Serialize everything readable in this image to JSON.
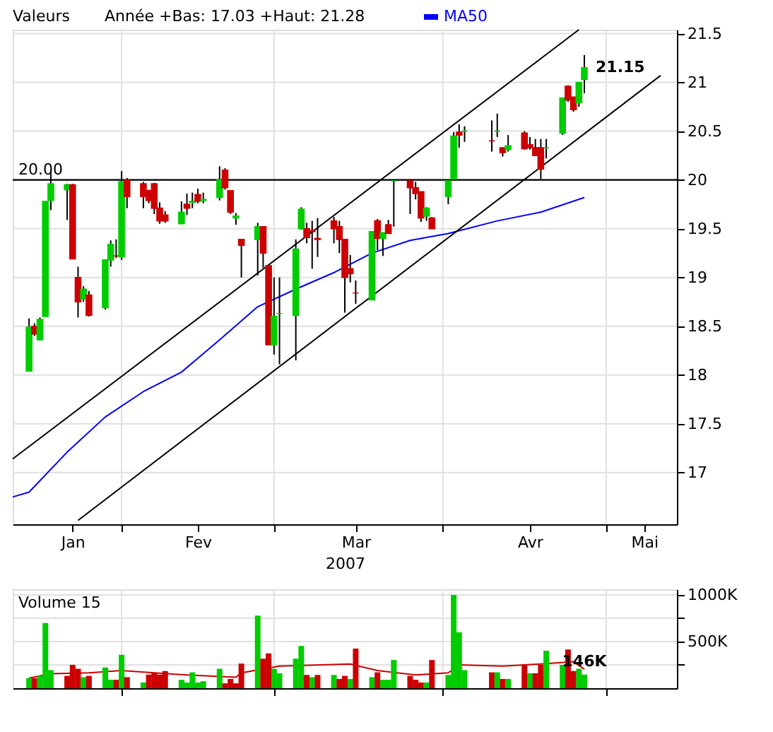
{
  "chart_data": [
    {
      "type": "candlestick",
      "legend_title": "Valeurs",
      "annotations": [
        "Année +Bas: 17.03 +Haut: 21.28"
      ],
      "xlabel": "2007",
      "legend": "top",
      "grid": true,
      "x": [
        "2007-01-15",
        "2007-01-16",
        "2007-01-17",
        "2007-01-18",
        "2007-01-19",
        "2007-01-22",
        "2007-01-23",
        "2007-01-24",
        "2007-01-25",
        "2007-01-26",
        "2007-01-29",
        "2007-01-30",
        "2007-01-31",
        "2007-02-01",
        "2007-02-02",
        "2007-02-05",
        "2007-02-06",
        "2007-02-07",
        "2007-02-08",
        "2007-02-09",
        "2007-02-12",
        "2007-02-13",
        "2007-02-14",
        "2007-02-15",
        "2007-02-16",
        "2007-02-19",
        "2007-02-20",
        "2007-02-21",
        "2007-02-22",
        "2007-02-23",
        "2007-02-26",
        "2007-02-27",
        "2007-02-28",
        "2007-03-01",
        "2007-03-02",
        "2007-03-05",
        "2007-03-06",
        "2007-03-07",
        "2007-03-08",
        "2007-03-09",
        "2007-03-12",
        "2007-03-13",
        "2007-03-14",
        "2007-03-15",
        "2007-03-16",
        "2007-03-19",
        "2007-03-20",
        "2007-03-21",
        "2007-03-22",
        "2007-03-23",
        "2007-03-26",
        "2007-03-27",
        "2007-03-28",
        "2007-03-29",
        "2007-03-30",
        "2007-04-02",
        "2007-04-03",
        "2007-04-04",
        "2007-04-05",
        "2007-04-10",
        "2007-04-11",
        "2007-04-12",
        "2007-04-13",
        "2007-04-16",
        "2007-04-17",
        "2007-04-18",
        "2007-04-19",
        "2007-04-20",
        "2007-04-23",
        "2007-04-24",
        "2007-04-25",
        "2007-04-26",
        "2007-04-27"
      ],
      "ohlc": [
        [
          18.04,
          18.58,
          18.04,
          18.49
        ],
        [
          18.5,
          18.53,
          18.4,
          18.42
        ],
        [
          18.36,
          18.59,
          18.36,
          18.57
        ],
        [
          18.6,
          19.78,
          18.6,
          19.78
        ],
        [
          19.79,
          20.1,
          19.69,
          19.96
        ],
        [
          19.9,
          19.96,
          19.59,
          19.95
        ],
        [
          19.95,
          19.96,
          19.19,
          19.19
        ],
        [
          19.0,
          19.11,
          18.59,
          18.75
        ],
        [
          18.78,
          18.91,
          18.75,
          18.88
        ],
        [
          18.82,
          18.86,
          18.6,
          18.61
        ],
        [
          18.69,
          19.18,
          18.67,
          19.18
        ],
        [
          19.18,
          19.38,
          19.11,
          19.34
        ],
        [
          19.22,
          19.39,
          19.2,
          19.22
        ],
        [
          19.21,
          20.09,
          19.18,
          19.98
        ],
        [
          20.0,
          20.02,
          19.71,
          19.83
        ],
        [
          19.96,
          19.98,
          19.71,
          19.83
        ],
        [
          19.89,
          19.9,
          19.76,
          19.79
        ],
        [
          19.96,
          19.97,
          19.65,
          19.71
        ],
        [
          19.71,
          19.77,
          19.55,
          19.58
        ],
        [
          19.64,
          19.68,
          19.56,
          19.58
        ],
        [
          19.55,
          19.78,
          19.55,
          19.67
        ],
        [
          19.75,
          19.86,
          19.64,
          19.71
        ],
        [
          19.77,
          19.87,
          19.71,
          19.78
        ],
        [
          19.85,
          19.91,
          19.76,
          19.78
        ],
        [
          19.79,
          19.87,
          19.76,
          19.8
        ],
        [
          19.82,
          20.14,
          19.79,
          20.0
        ],
        [
          20.1,
          20.12,
          19.9,
          19.92
        ],
        [
          19.89,
          19.89,
          19.65,
          19.67
        ],
        [
          19.61,
          19.66,
          19.54,
          19.63
        ],
        [
          19.39,
          19.39,
          19.0,
          19.33
        ],
        [
          19.39,
          19.56,
          19.02,
          19.52
        ],
        [
          19.52,
          19.52,
          19.1,
          19.25
        ],
        [
          19.12,
          19.12,
          18.31,
          18.31
        ],
        [
          18.31,
          19.0,
          18.21,
          18.6
        ],
        [
          18.63,
          19.0,
          18.11,
          18.63
        ],
        [
          18.61,
          19.39,
          18.15,
          19.29
        ],
        [
          19.5,
          19.72,
          19.49,
          19.7
        ],
        [
          19.5,
          19.56,
          19.35,
          19.41
        ],
        [
          19.48,
          19.58,
          19.09,
          19.47
        ],
        [
          19.4,
          19.61,
          19.21,
          19.39
        ],
        [
          19.58,
          19.62,
          19.35,
          19.5
        ],
        [
          19.52,
          19.58,
          19.25,
          19.39
        ],
        [
          19.39,
          19.39,
          18.64,
          19.0
        ],
        [
          19.09,
          19.23,
          18.95,
          19.04
        ],
        [
          18.84,
          18.97,
          18.73,
          18.84
        ],
        [
          18.77,
          19.47,
          18.77,
          19.47
        ],
        [
          19.58,
          19.6,
          19.28,
          19.4
        ],
        [
          19.4,
          19.46,
          19.22,
          19.46
        ],
        [
          19.54,
          19.59,
          19.45,
          19.45
        ],
        [
          19.99,
          19.99,
          19.52,
          19.99
        ],
        [
          19.99,
          20.0,
          19.65,
          19.92
        ],
        [
          19.92,
          19.98,
          19.8,
          19.86
        ],
        [
          19.88,
          19.88,
          19.57,
          19.61
        ],
        [
          19.63,
          19.72,
          19.58,
          19.71
        ],
        [
          19.61,
          19.62,
          19.5,
          19.5
        ],
        [
          19.83,
          19.99,
          19.75,
          19.99
        ],
        [
          20.01,
          20.49,
          20.0,
          20.45
        ],
        [
          20.49,
          20.57,
          20.33,
          20.46
        ],
        [
          20.5,
          20.55,
          20.39,
          20.5
        ],
        [
          20.4,
          20.61,
          20.29,
          20.4
        ],
        [
          20.5,
          20.68,
          20.44,
          20.5
        ],
        [
          20.33,
          20.33,
          20.24,
          20.28
        ],
        [
          20.31,
          20.46,
          20.29,
          20.35
        ],
        [
          20.48,
          20.5,
          20.31,
          20.32
        ],
        [
          20.36,
          20.44,
          20.31,
          20.33
        ],
        [
          20.33,
          20.42,
          20.25,
          20.25
        ],
        [
          20.33,
          20.42,
          20.01,
          20.11
        ],
        [
          20.33,
          20.42,
          20.22,
          20.33
        ],
        [
          20.48,
          20.84,
          20.46,
          20.84
        ],
        [
          20.96,
          20.97,
          20.8,
          20.82
        ],
        [
          20.85,
          20.85,
          20.7,
          20.72
        ],
        [
          20.79,
          21.0,
          20.75,
          21.0
        ],
        [
          21.03,
          21.28,
          20.89,
          21.15
        ]
      ],
      "colors": [
        "#00cc00",
        "#cc0000",
        "#00cc00",
        "#00cc00",
        "#00cc00",
        "#00cc00",
        "#cc0000",
        "#cc0000",
        "#00cc00",
        "#cc0000",
        "#00cc00",
        "#00cc00",
        "#cc0000",
        "#00cc00",
        "#cc0000",
        "#cc0000",
        "#cc0000",
        "#cc0000",
        "#cc0000",
        "#cc0000",
        "#00cc00",
        "#cc0000",
        "#00cc00",
        "#cc0000",
        "#00cc00",
        "#00cc00",
        "#cc0000",
        "#cc0000",
        "#00cc00",
        "#cc0000",
        "#00cc00",
        "#cc0000",
        "#cc0000",
        "#00cc00",
        "#00cc00",
        "#00cc00",
        "#00cc00",
        "#cc0000",
        "#cc0000",
        "#cc0000",
        "#cc0000",
        "#cc0000",
        "#cc0000",
        "#cc0000",
        "#cc0000",
        "#00cc00",
        "#cc0000",
        "#00cc00",
        "#cc0000",
        "#00cc00",
        "#cc0000",
        "#cc0000",
        "#cc0000",
        "#00cc00",
        "#cc0000",
        "#00cc00",
        "#00cc00",
        "#cc0000",
        "#00cc00",
        "#cc0000",
        "#00cc00",
        "#cc0000",
        "#00cc00",
        "#cc0000",
        "#cc0000",
        "#cc0000",
        "#cc0000",
        "#00cc00",
        "#00cc00",
        "#cc0000",
        "#cc0000",
        "#00cc00",
        "#00cc00"
      ],
      "value_labels": [
        null,
        null,
        null,
        null,
        null,
        null,
        null,
        null,
        null,
        null,
        null,
        null,
        null,
        null,
        null,
        null,
        null,
        null,
        null,
        null,
        null,
        null,
        null,
        null,
        null,
        null,
        null,
        null,
        null,
        null,
        null,
        null,
        null,
        null,
        null,
        null,
        null,
        null,
        null,
        null,
        null,
        null,
        null,
        null,
        null,
        null,
        null,
        null,
        null,
        null,
        null,
        null,
        null,
        null,
        null,
        null,
        null,
        null,
        null,
        null,
        null,
        null,
        null,
        null,
        null,
        null,
        null,
        null,
        null,
        null,
        null,
        null,
        "21.15"
      ],
      "series": [
        {
          "name": "MA50",
          "type": "line",
          "color": "#0000ff",
          "x": [
            "2007-01-12",
            "2007-01-15",
            "2007-01-22",
            "2007-01-29",
            "2007-02-05",
            "2007-02-12",
            "2007-02-19",
            "2007-02-26",
            "2007-03-05",
            "2007-03-12",
            "2007-03-19",
            "2007-03-26",
            "2007-04-02",
            "2007-04-11",
            "2007-04-19",
            "2007-04-27"
          ],
          "values": [
            16.75,
            16.8,
            17.21,
            17.57,
            17.83,
            18.03,
            18.36,
            18.7,
            18.88,
            19.05,
            19.25,
            19.38,
            19.45,
            19.58,
            19.67,
            19.82
          ]
        },
        {
          "type": "line",
          "color": "#000000",
          "x": [
            "2007-01-12",
            "2007-04-26"
          ],
          "values": [
            17.14,
            21.54
          ]
        },
        {
          "type": "line",
          "color": "#000000",
          "x": [
            "2007-01-24",
            "2007-05-11"
          ],
          "values": [
            16.51,
            21.07
          ]
        }
      ],
      "ref_lines": [
        {
          "axis": "y",
          "value": 20,
          "label": "20.00",
          "color": "#000000"
        }
      ],
      "xlim": [
        "2007-01-12",
        "2007-05-14"
      ],
      "xticks": [
        {
          "value": "2007-01-23",
          "label": "Jan"
        },
        {
          "value": "2007-02-01",
          "label": null
        },
        {
          "value": "2007-02-15",
          "label": "Fev"
        },
        {
          "value": "2007-03-01",
          "label": null
        },
        {
          "value": "2007-03-16",
          "label": "Mar"
        },
        {
          "value": "2007-04-01",
          "label": null
        },
        {
          "value": "2007-04-17",
          "label": "Avr"
        },
        {
          "value": "2007-05-01",
          "label": null
        },
        {
          "value": "2007-05-08",
          "label": "Mai"
        }
      ],
      "ylim": [
        16.47,
        21.54
      ],
      "yticks": [
        17,
        17.5,
        18,
        18.5,
        19,
        19.5,
        20,
        20.5,
        21,
        21.5
      ]
    },
    {
      "type": "bar",
      "title": "Volume 15",
      "grid": true,
      "tick_labels": "y",
      "x": [
        "2007-01-15",
        "2007-01-16",
        "2007-01-17",
        "2007-01-18",
        "2007-01-19",
        "2007-01-22",
        "2007-01-23",
        "2007-01-24",
        "2007-01-25",
        "2007-01-26",
        "2007-01-29",
        "2007-01-30",
        "2007-01-31",
        "2007-02-01",
        "2007-02-02",
        "2007-02-05",
        "2007-02-06",
        "2007-02-07",
        "2007-02-08",
        "2007-02-09",
        "2007-02-12",
        "2007-02-13",
        "2007-02-14",
        "2007-02-15",
        "2007-02-16",
        "2007-02-19",
        "2007-02-20",
        "2007-02-21",
        "2007-02-22",
        "2007-02-23",
        "2007-02-26",
        "2007-02-27",
        "2007-02-28",
        "2007-03-01",
        "2007-03-02",
        "2007-03-05",
        "2007-03-06",
        "2007-03-07",
        "2007-03-08",
        "2007-03-09",
        "2007-03-12",
        "2007-03-13",
        "2007-03-14",
        "2007-03-15",
        "2007-03-16",
        "2007-03-19",
        "2007-03-20",
        "2007-03-21",
        "2007-03-22",
        "2007-03-23",
        "2007-03-26",
        "2007-03-27",
        "2007-03-28",
        "2007-03-29",
        "2007-03-30",
        "2007-04-02",
        "2007-04-03",
        "2007-04-04",
        "2007-04-05",
        "2007-04-10",
        "2007-04-11",
        "2007-04-12",
        "2007-04-13",
        "2007-04-16",
        "2007-04-17",
        "2007-04-18",
        "2007-04-19",
        "2007-04-20",
        "2007-04-23",
        "2007-04-24",
        "2007-04-25",
        "2007-04-26",
        "2007-04-27"
      ],
      "series": [
        {
          "type": "bar",
          "values": [
            108,
            108,
            132,
            698,
            193,
            132,
            250,
            208,
            118,
            132,
            222,
            90,
            90,
            358,
            118,
            61,
            146,
            160,
            146,
            184,
            90,
            61,
            170,
            61,
            75,
            208,
            52,
            99,
            52,
            264,
            778,
            316,
            373,
            208,
            160,
            316,
            453,
            142,
            118,
            142,
            142,
            99,
            132,
            99,
            425,
            118,
            170,
            90,
            90,
            302,
            132,
            90,
            61,
            61,
            302,
            142,
            1000,
            599,
            193,
            170,
            170,
            99,
            99,
            250,
            160,
            160,
            250,
            401,
            250,
            415,
            184,
            208,
            146
          ],
          "colors": [
            "#00cc00",
            "#cc0000",
            "#00cc00",
            "#00cc00",
            "#00cc00",
            "#cc0000",
            "#cc0000",
            "#cc0000",
            "#00cc00",
            "#cc0000",
            "#00cc00",
            "#00cc00",
            "#cc0000",
            "#00cc00",
            "#cc0000",
            "#00cc00",
            "#cc0000",
            "#cc0000",
            "#cc0000",
            "#cc0000",
            "#00cc00",
            "#00cc00",
            "#00cc00",
            "#00cc00",
            "#00cc00",
            "#00cc00",
            "#cc0000",
            "#cc0000",
            "#cc0000",
            "#cc0000",
            "#00cc00",
            "#cc0000",
            "#cc0000",
            "#00cc00",
            "#00cc00",
            "#00cc00",
            "#00cc00",
            "#cc0000",
            "#00cc00",
            "#cc0000",
            "#00cc00",
            "#cc0000",
            "#cc0000",
            "#00cc00",
            "#cc0000",
            "#00cc00",
            "#cc0000",
            "#00cc00",
            "#00cc00",
            "#00cc00",
            "#cc0000",
            "#cc0000",
            "#cc0000",
            "#00cc00",
            "#cc0000",
            "#00cc00",
            "#00cc00",
            "#00cc00",
            "#00cc00",
            "#cc0000",
            "#00cc00",
            "#cc0000",
            "#00cc00",
            "#cc0000",
            "#00cc00",
            "#cc0000",
            "#cc0000",
            "#00cc00",
            "#00cc00",
            "#cc0000",
            "#cc0000",
            "#00cc00",
            "#00cc00"
          ],
          "value_labels": [
            null,
            null,
            null,
            null,
            null,
            null,
            null,
            null,
            null,
            null,
            null,
            null,
            null,
            null,
            null,
            null,
            null,
            null,
            null,
            null,
            null,
            null,
            null,
            null,
            null,
            null,
            null,
            null,
            null,
            null,
            null,
            null,
            null,
            null,
            null,
            null,
            null,
            null,
            null,
            null,
            null,
            null,
            null,
            null,
            null,
            null,
            null,
            null,
            null,
            null,
            null,
            null,
            null,
            null,
            null,
            null,
            null,
            null,
            null,
            null,
            null,
            null,
            null,
            null,
            null,
            null,
            null,
            null,
            null,
            null,
            null,
            null,
            "146K"
          ]
        },
        {
          "type": "line",
          "color": "#cc0000",
          "x": [
            "2007-01-15",
            "2007-01-19",
            "2007-01-26",
            "2007-02-01",
            "2007-02-07",
            "2007-02-13",
            "2007-02-22",
            "2007-02-23",
            "2007-03-02",
            "2007-03-15",
            "2007-03-20",
            "2007-03-27",
            "2007-04-02",
            "2007-04-04",
            "2007-04-12",
            "2007-04-19",
            "2007-04-25",
            "2007-04-27"
          ],
          "values": [
            108,
            156,
            165,
            189,
            165,
            142,
            118,
            165,
            236,
            259,
            189,
            142,
            165,
            250,
            236,
            259,
            283,
            203
          ]
        }
      ],
      "xlim": [
        "2007-01-12",
        "2007-05-14"
      ],
      "xticks": [
        {
          "value": "2007-02-01",
          "label": null
        },
        {
          "value": "2007-03-01",
          "label": null
        },
        {
          "value": "2007-04-01",
          "label": null
        },
        {
          "value": "2007-05-01",
          "label": null
        }
      ],
      "ylim": [
        0,
        1060
      ],
      "yticks": [
        {
          "value": 250,
          "label": null
        },
        {
          "value": 500,
          "label": "500K"
        },
        {
          "value": 750,
          "label": null
        },
        {
          "value": 1000,
          "label": "1000K"
        }
      ]
    }
  ]
}
